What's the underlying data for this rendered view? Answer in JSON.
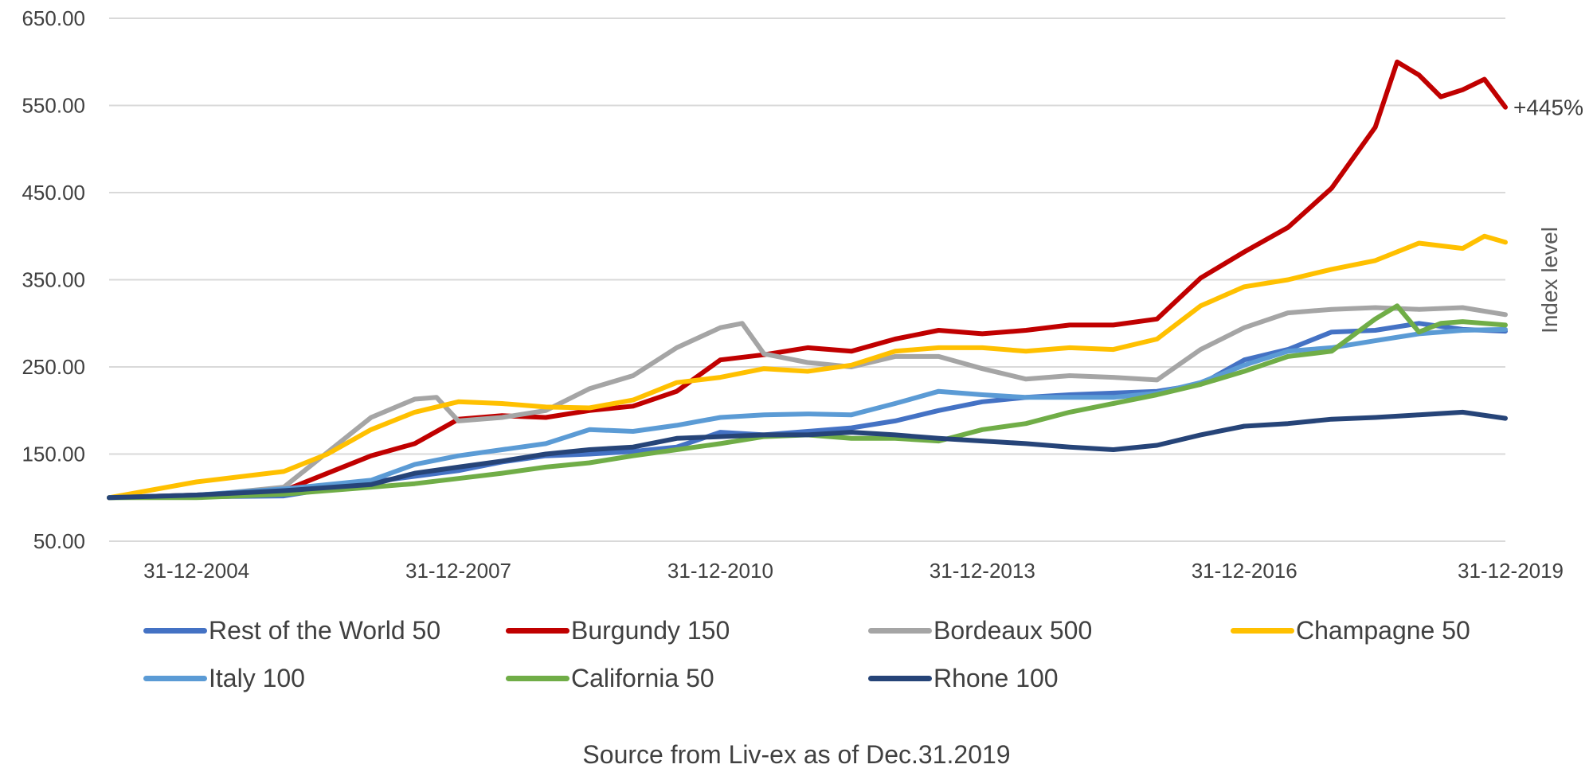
{
  "chart_data": {
    "type": "line",
    "title": "",
    "xlabel": "",
    "ylabel": "Index level",
    "ylim": [
      50,
      650
    ],
    "yticks": [
      "650.00",
      "550.00",
      "450.00",
      "350.00",
      "250.00",
      "150.00",
      "50.00"
    ],
    "xticks": [
      "31-12-2004",
      "31-12-2007",
      "31-12-2010",
      "31-12-2013",
      "31-12-2016",
      "31-12-2019"
    ],
    "xrange": [
      2004.0,
      2019.99
    ],
    "grid": "horizontal",
    "legend_position": "bottom",
    "annotation": "+445%",
    "series": [
      {
        "name": "Rest of the World 50",
        "color": "#4472C4",
        "x": [
          2004.0,
          2005.0,
          2006.0,
          2007.0,
          2008.0,
          2008.5,
          2009.0,
          2009.5,
          2010.0,
          2010.5,
          2011.0,
          2011.5,
          2012.0,
          2012.5,
          2013.0,
          2013.5,
          2014.0,
          2014.5,
          2015.0,
          2015.5,
          2016.0,
          2016.5,
          2017.0,
          2017.5,
          2018.0,
          2018.5,
          2019.0,
          2019.5,
          2019.99
        ],
        "y": [
          100,
          101,
          102,
          118,
          131,
          141,
          148,
          150,
          153,
          158,
          175,
          172,
          176,
          180,
          188,
          200,
          210,
          215,
          218,
          220,
          222,
          230,
          258,
          270,
          290,
          292,
          300,
          293,
          291
        ]
      },
      {
        "name": "Burgundy 150",
        "color": "#C00000",
        "x": [
          2004.0,
          2005.0,
          2006.0,
          2007.0,
          2007.5,
          2008.0,
          2008.5,
          2009.0,
          2009.5,
          2010.0,
          2010.5,
          2011.0,
          2011.5,
          2012.0,
          2012.5,
          2013.0,
          2013.5,
          2014.0,
          2014.5,
          2015.0,
          2015.5,
          2016.0,
          2016.5,
          2017.0,
          2017.5,
          2018.0,
          2018.5,
          2018.75,
          2019.0,
          2019.25,
          2019.5,
          2019.75,
          2019.99
        ],
        "y": [
          100,
          103,
          108,
          148,
          162,
          190,
          194,
          192,
          200,
          205,
          222,
          258,
          264,
          272,
          268,
          282,
          292,
          288,
          292,
          298,
          298,
          305,
          352,
          382,
          410,
          455,
          525,
          600,
          585,
          560,
          568,
          580,
          548
        ]
      },
      {
        "name": "Bordeaux 500",
        "color": "#A5A5A5",
        "x": [
          2004.0,
          2005.0,
          2006.0,
          2006.5,
          2007.0,
          2007.5,
          2007.75,
          2008.0,
          2008.5,
          2009.0,
          2009.5,
          2010.0,
          2010.5,
          2011.0,
          2011.25,
          2011.5,
          2012.0,
          2012.5,
          2013.0,
          2013.5,
          2014.0,
          2014.5,
          2015.0,
          2015.5,
          2016.0,
          2016.5,
          2017.0,
          2017.5,
          2018.0,
          2018.5,
          2019.0,
          2019.5,
          2019.99
        ],
        "y": [
          100,
          102,
          112,
          152,
          192,
          213,
          215,
          188,
          192,
          200,
          225,
          240,
          272,
          295,
          300,
          265,
          255,
          250,
          262,
          262,
          248,
          236,
          240,
          238,
          235,
          270,
          295,
          312,
          316,
          318,
          316,
          318,
          310
        ]
      },
      {
        "name": "Champagne 50",
        "color": "#FFC000",
        "x": [
          2004.0,
          2005.0,
          2006.0,
          2006.5,
          2007.0,
          2007.5,
          2008.0,
          2008.5,
          2009.0,
          2009.5,
          2010.0,
          2010.5,
          2011.0,
          2011.5,
          2012.0,
          2012.5,
          2013.0,
          2013.5,
          2014.0,
          2014.5,
          2015.0,
          2015.5,
          2016.0,
          2016.5,
          2017.0,
          2017.5,
          2018.0,
          2018.5,
          2019.0,
          2019.5,
          2019.75,
          2019.99
        ],
        "y": [
          100,
          118,
          130,
          150,
          178,
          198,
          210,
          208,
          204,
          203,
          212,
          232,
          238,
          248,
          245,
          252,
          268,
          272,
          272,
          268,
          272,
          270,
          282,
          320,
          342,
          350,
          362,
          372,
          392,
          386,
          400,
          393
        ]
      },
      {
        "name": "Italy 100",
        "color": "#5B9BD5",
        "x": [
          2004.0,
          2005.0,
          2006.0,
          2007.0,
          2007.5,
          2008.0,
          2008.5,
          2009.0,
          2009.5,
          2010.0,
          2010.5,
          2011.0,
          2011.5,
          2012.0,
          2012.5,
          2013.0,
          2013.5,
          2014.0,
          2014.5,
          2015.0,
          2015.5,
          2016.0,
          2016.5,
          2017.0,
          2017.5,
          2018.0,
          2018.5,
          2019.0,
          2019.5,
          2019.99
        ],
        "y": [
          100,
          103,
          110,
          120,
          138,
          148,
          155,
          162,
          178,
          176,
          183,
          192,
          195,
          196,
          195,
          208,
          222,
          218,
          215,
          215,
          215,
          220,
          232,
          252,
          268,
          272,
          280,
          288,
          292,
          293
        ]
      },
      {
        "name": "California 50",
        "color": "#70AD47",
        "x": [
          2004.0,
          2005.0,
          2006.0,
          2007.0,
          2007.5,
          2008.0,
          2008.5,
          2009.0,
          2009.5,
          2010.0,
          2010.5,
          2011.0,
          2011.5,
          2012.0,
          2012.5,
          2013.0,
          2013.5,
          2014.0,
          2014.5,
          2015.0,
          2015.5,
          2016.0,
          2016.5,
          2017.0,
          2017.5,
          2018.0,
          2018.5,
          2018.75,
          2019.0,
          2019.25,
          2019.5,
          2019.99
        ],
        "y": [
          100,
          100,
          104,
          112,
          116,
          122,
          128,
          135,
          140,
          148,
          155,
          162,
          170,
          172,
          168,
          168,
          165,
          178,
          185,
          198,
          208,
          218,
          230,
          245,
          262,
          268,
          305,
          320,
          290,
          300,
          302,
          298
        ]
      },
      {
        "name": "Rhone 100",
        "color": "#264478",
        "x": [
          2004.0,
          2005.0,
          2006.0,
          2007.0,
          2007.5,
          2008.0,
          2008.5,
          2009.0,
          2009.5,
          2010.0,
          2010.5,
          2011.0,
          2011.5,
          2012.0,
          2012.5,
          2013.0,
          2013.5,
          2014.0,
          2014.5,
          2015.0,
          2015.5,
          2016.0,
          2016.5,
          2017.0,
          2017.5,
          2018.0,
          2018.5,
          2019.0,
          2019.5,
          2019.99
        ],
        "y": [
          100,
          103,
          108,
          115,
          128,
          135,
          142,
          150,
          155,
          158,
          168,
          170,
          172,
          172,
          175,
          172,
          168,
          165,
          162,
          158,
          155,
          160,
          172,
          182,
          185,
          190,
          192,
          195,
          198,
          191
        ]
      }
    ]
  },
  "footer": {
    "source": "Source from Liv-ex as of Dec.31.2019"
  }
}
